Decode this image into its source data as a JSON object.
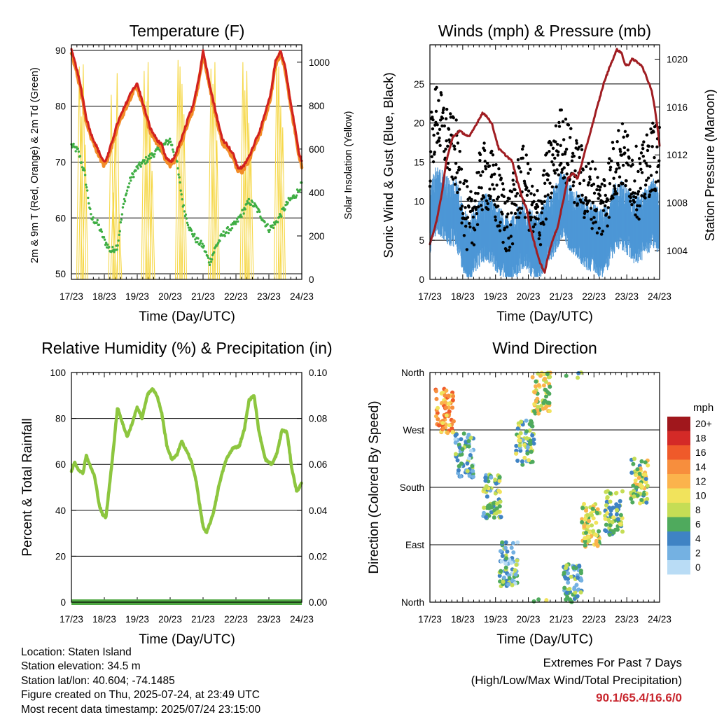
{
  "meta": {
    "location": "Location: Staten Island",
    "elevation": "Station elevation: 34.5 m",
    "latlon": "Station lat/lon: 40.604; -74.1485",
    "created": "Figure created on Thu, 2025-07-24, at 23:49 UTC",
    "recent": "Most recent data timestamp: 2025/07/24 23:15:00"
  },
  "extremes": {
    "title": "Extremes For Past 7 Days",
    "subtitle": "(High/Low/Max Wind/Total Precipitation)",
    "values": "90.1/65.4/16.6/0",
    "color": "#c8262e"
  },
  "colors": {
    "temp_2m": "#d2221f",
    "temp_9m": "#f28c28",
    "dewpoint": "#3fae44",
    "solar": "#f6d84a",
    "wind": "#4d97d6",
    "gust": "#000000",
    "pressure": "#a01d22",
    "humidity": "#8dc63f",
    "precip": "#4fa843"
  },
  "x_ticks": [
    "17/23",
    "18/23",
    "19/23",
    "20/23",
    "21/23",
    "22/23",
    "23/23",
    "24/23"
  ],
  "chart_data": [
    {
      "type": "line",
      "title": "Temperature (F)",
      "xlabel": "Time (Day/UTC)",
      "ylabel": "2m & 9m T (Red, Orange) & 2m Td (Green)",
      "ylabel_right": "Solar Insolation (Yellow)",
      "ylim": [
        49,
        91
      ],
      "yticks": [
        "50",
        "60",
        "70",
        "80",
        "90"
      ],
      "ylim_right": [
        0,
        1080
      ],
      "yticks_right": [
        "0",
        "200",
        "400",
        "600",
        "800",
        "1000"
      ],
      "grid": true,
      "x_range_days": [
        0,
        7
      ],
      "series": [
        {
          "name": "2m T",
          "x": [
            0,
            0.15,
            0.3,
            0.45,
            0.6,
            0.75,
            0.9,
            1.0,
            1.1,
            1.25,
            1.4,
            1.55,
            1.7,
            1.85,
            2.0,
            2.1,
            2.25,
            2.4,
            2.6,
            2.75,
            2.85,
            3.0,
            3.1,
            3.2,
            3.4,
            3.55,
            3.7,
            3.8,
            3.9,
            4.0,
            4.1,
            4.2,
            4.35,
            4.5,
            4.6,
            4.75,
            4.95,
            5.05,
            5.2,
            5.4,
            5.6,
            5.75,
            5.9,
            6.05,
            6.2,
            6.35,
            6.5,
            6.65,
            6.8,
            6.9,
            7.0
          ],
          "values": [
            90,
            87,
            83,
            78,
            75,
            73,
            71,
            70,
            71,
            74,
            77,
            79,
            81,
            83,
            84,
            82,
            79,
            76,
            74,
            73,
            71,
            70,
            70.5,
            72,
            75,
            78,
            80,
            83,
            86,
            90,
            87,
            84,
            80,
            76,
            74,
            73,
            71,
            69,
            69,
            71,
            74,
            76,
            79,
            82,
            88,
            90,
            87,
            81,
            76,
            72,
            70
          ]
        },
        {
          "name": "9m T",
          "x": [
            0,
            0.5,
            1,
            1.5,
            2,
            2.5,
            3,
            3.5,
            4,
            4.5,
            5,
            5.5,
            6,
            6.5,
            7
          ],
          "values": [
            89,
            77,
            70,
            77,
            83,
            75,
            70,
            77,
            89,
            76,
            70,
            72,
            81,
            86,
            71
          ]
        },
        {
          "name": "2m Td",
          "x": [
            0,
            0.2,
            0.4,
            0.6,
            0.8,
            1.0,
            1.2,
            1.4,
            1.6,
            1.8,
            2.0,
            2.2,
            2.4,
            2.6,
            2.8,
            3.0,
            3.2,
            3.4,
            3.6,
            3.8,
            4.0,
            4.2,
            4.4,
            4.6,
            4.8,
            5.0,
            5.2,
            5.4,
            5.6,
            5.8,
            6.0,
            6.2,
            6.4,
            6.6,
            6.8,
            7.0
          ],
          "values": [
            73,
            72,
            68,
            60,
            59,
            56,
            54,
            55,
            63,
            67,
            69,
            70,
            71,
            72,
            73,
            74,
            70,
            62,
            58,
            56,
            55,
            52,
            55,
            57,
            58,
            59,
            61,
            63,
            62,
            60,
            58,
            59,
            61,
            63,
            64,
            66
          ]
        },
        {
          "name": "Solar",
          "x": [],
          "values": []
        }
      ],
      "solar_peaks": [
        {
          "day": 0.33,
          "values": [
            980,
            750,
            990,
            620
          ]
        },
        {
          "day": 1.33,
          "values": [
            850,
            400,
            700,
            950,
            300
          ]
        },
        {
          "day": 2.33,
          "values": [
            960,
            820,
            1000,
            700,
            500
          ]
        },
        {
          "day": 3.33,
          "values": [
            1010,
            980,
            900,
            760
          ]
        },
        {
          "day": 4.33,
          "values": [
            970,
            900,
            1000,
            640
          ]
        },
        {
          "day": 5.33,
          "values": [
            1000,
            870,
            960,
            720,
            600
          ]
        },
        {
          "day": 6.33,
          "values": [
            1030,
            980,
            800,
            700
          ]
        }
      ]
    },
    {
      "type": "scatter",
      "title": "Winds (mph) & Pressure (mb)",
      "xlabel": "Time (Day/UTC)",
      "ylabel": "Sonic Wind & Gust (Blue, Black)",
      "ylabel_right": "Station Pressure (Maroon)",
      "ylim": [
        0,
        30
      ],
      "yticks": [
        "0",
        "5",
        "10",
        "15",
        "20",
        "25"
      ],
      "ylim_right": [
        1001.6,
        1021.2
      ],
      "yticks_right": [
        "1004",
        "1008",
        "1012",
        "1016",
        "1020"
      ],
      "grid": true,
      "x_range_days": [
        0,
        7
      ],
      "series": [
        {
          "name": "Pressure",
          "x": [
            0,
            0.2,
            0.35,
            0.5,
            0.7,
            0.9,
            1.2,
            1.4,
            1.6,
            1.75,
            1.9,
            2.1,
            2.3,
            2.5,
            2.65,
            2.8,
            2.95,
            3.05,
            3.2,
            3.35,
            3.5,
            3.6,
            3.75,
            3.9,
            4.05,
            4.2,
            4.35,
            4.5,
            4.7,
            4.85,
            5.0,
            5.15,
            5.3,
            5.5,
            5.7,
            5.85,
            5.95,
            6.05,
            6.15,
            6.3,
            6.45,
            6.6,
            6.75,
            6.85,
            6.95,
            7.0
          ],
          "values": [
            1004.5,
            1006.5,
            1008.5,
            1011.5,
            1013.5,
            1014,
            1013.5,
            1014.5,
            1015.5,
            1015.2,
            1014.5,
            1012.5,
            1012,
            1011.5,
            1010,
            1008.5,
            1007.5,
            1006,
            1004.5,
            1003,
            1002.2,
            1003.5,
            1005,
            1006,
            1008,
            1010,
            1010.5,
            1010,
            1012,
            1013.5,
            1015,
            1016.5,
            1018,
            1019.5,
            1020.8,
            1020.5,
            1019.5,
            1019.5,
            1020,
            1019.8,
            1019.5,
            1018.5,
            1017.5,
            1016,
            1014,
            1012.8
          ]
        },
        {
          "name": "Wind",
          "x": [
            0,
            0.2,
            0.4,
            0.6,
            0.8,
            1.0,
            1.2,
            1.4,
            1.6,
            1.8,
            2.0,
            2.2,
            2.4,
            2.6,
            2.8,
            3.0,
            3.2,
            3.4,
            3.6,
            3.8,
            4.0,
            4.2,
            4.4,
            4.6,
            4.8,
            5.0,
            5.2,
            5.4,
            5.6,
            5.8,
            6.0,
            6.2,
            6.4,
            6.6,
            6.8,
            7.0
          ],
          "values": [
            8,
            11,
            10,
            9,
            9,
            6,
            4,
            6,
            7,
            7,
            6,
            5,
            4,
            5,
            6,
            6,
            4,
            5,
            7,
            8,
            10,
            9,
            8,
            7,
            6,
            6,
            5,
            6,
            8,
            9,
            8,
            7,
            7,
            8,
            9,
            8
          ]
        },
        {
          "name": "Gust",
          "x": [
            0,
            0.2,
            0.4,
            0.6,
            0.8,
            1.0,
            1.2,
            1.4,
            1.6,
            1.8,
            2.0,
            2.2,
            2.4,
            2.6,
            2.8,
            3.0,
            3.2,
            3.4,
            3.6,
            3.8,
            4.0,
            4.2,
            4.4,
            4.6,
            4.8,
            5.0,
            5.2,
            5.4,
            5.6,
            5.8,
            6.0,
            6.2,
            6.4,
            6.6,
            6.8,
            7.0
          ],
          "values": [
            16,
            21,
            19,
            17,
            16,
            11,
            6,
            10,
            13,
            13,
            11,
            9,
            7,
            10,
            13,
            11,
            7,
            9,
            13,
            15,
            18,
            16,
            14,
            13,
            11,
            11,
            9,
            11,
            14,
            16,
            15,
            13,
            12,
            14,
            16,
            15
          ]
        }
      ]
    },
    {
      "type": "line",
      "title": "Relative Humidity (%) & Precipitation (in)",
      "xlabel": "Time (Day/UTC)",
      "ylabel": "Percent & Total Rainfall",
      "ylim": [
        0,
        100
      ],
      "yticks": [
        "0",
        "20",
        "40",
        "60",
        "80",
        "100"
      ],
      "ylim_right": [
        0,
        0.1
      ],
      "yticks_right": [
        "0.00",
        "0.02",
        "0.04",
        "0.06",
        "0.08",
        "0.10"
      ],
      "grid": true,
      "x_range_days": [
        0,
        7
      ],
      "series": [
        {
          "name": "RH",
          "x": [
            0,
            0.1,
            0.2,
            0.35,
            0.45,
            0.55,
            0.7,
            0.85,
            0.95,
            1.05,
            1.15,
            1.3,
            1.4,
            1.55,
            1.7,
            1.85,
            2.0,
            2.15,
            2.3,
            2.45,
            2.6,
            2.75,
            2.9,
            3.05,
            3.2,
            3.35,
            3.5,
            3.65,
            3.8,
            3.9,
            4.0,
            4.1,
            4.3,
            4.5,
            4.7,
            4.9,
            5.1,
            5.25,
            5.4,
            5.55,
            5.7,
            5.9,
            6.1,
            6.25,
            6.4,
            6.55,
            6.7,
            6.85,
            7.0
          ],
          "values": [
            57,
            61,
            58,
            56,
            64,
            60,
            55,
            42,
            38,
            37,
            50,
            70,
            85,
            78,
            72,
            78,
            85,
            80,
            90,
            93,
            90,
            82,
            68,
            62,
            64,
            70,
            66,
            61,
            52,
            42,
            33,
            30,
            38,
            52,
            62,
            67,
            68,
            75,
            88,
            90,
            74,
            62,
            60,
            65,
            75,
            74,
            58,
            48,
            52
          ]
        },
        {
          "name": "Precipitation",
          "x": [
            0,
            7
          ],
          "values": [
            0,
            0
          ]
        }
      ]
    },
    {
      "type": "scatter",
      "title": "Wind Direction",
      "xlabel": "Time (Day/UTC)",
      "ylabel": "Direction (Colored By Speed)",
      "yticks": [
        "North",
        "East",
        "South",
        "West",
        "North"
      ],
      "ylim": [
        0,
        360
      ],
      "grid": true,
      "x_range_days": [
        0,
        7
      ],
      "legend": {
        "title": "mph",
        "labels": [
          "20+",
          "18",
          "16",
          "14",
          "12",
          "10",
          "8",
          "6",
          "4",
          "2",
          "0"
        ],
        "colors": [
          "#a0171c",
          "#d42a27",
          "#ef5a2a",
          "#f78e3d",
          "#fbb34c",
          "#f1e35c",
          "#c5dd55",
          "#4faa5d",
          "#3f83c4",
          "#74b1e2",
          "#b9dcf5"
        ]
      },
      "clusters": [
        {
          "day": 0.45,
          "dir": 300,
          "speed": 13
        },
        {
          "day": 1.05,
          "dir": 230,
          "speed": 4
        },
        {
          "day": 1.9,
          "dir": 165,
          "speed": 6
        },
        {
          "day": 2.4,
          "dir": 60,
          "speed": 4
        },
        {
          "day": 2.9,
          "dir": 250,
          "speed": 6
        },
        {
          "day": 3.4,
          "dir": 330,
          "speed": 9
        },
        {
          "day": 4.35,
          "dir": 25,
          "speed": 5
        },
        {
          "day": 4.9,
          "dir": 120,
          "speed": 9
        },
        {
          "day": 5.6,
          "dir": 140,
          "speed": 7
        },
        {
          "day": 6.4,
          "dir": 190,
          "speed": 8
        }
      ]
    }
  ]
}
